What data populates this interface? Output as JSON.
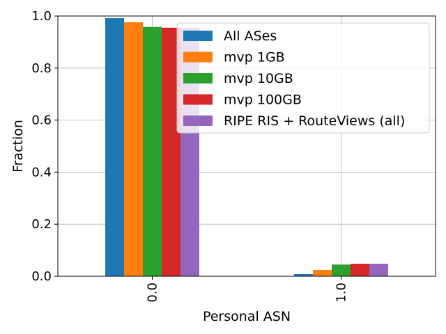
{
  "chart_data": {
    "type": "bar",
    "categories": [
      "0.0",
      "1.0"
    ],
    "series": [
      {
        "name": "All ASes",
        "values": [
          0.992,
          0.008
        ],
        "color": "#1f77b4"
      },
      {
        "name": "mvp 1GB",
        "values": [
          0.976,
          0.024
        ],
        "color": "#ff7f0e"
      },
      {
        "name": "mvp 10GB",
        "values": [
          0.958,
          0.045
        ],
        "color": "#2ca02c"
      },
      {
        "name": "mvp 100GB",
        "values": [
          0.955,
          0.048
        ],
        "color": "#d62728"
      },
      {
        "name": "RIPE RIS + RouteViews (all)",
        "values": [
          0.955,
          0.048
        ],
        "color": "#9467bd"
      }
    ],
    "xlabel": "Personal ASN",
    "ylabel": "Fraction",
    "ylim": [
      0,
      1.0
    ],
    "yticks": [
      "0.0",
      "0.2",
      "0.4",
      "0.6",
      "0.8",
      "1.0"
    ],
    "grid": true,
    "legend_position": "top-right"
  }
}
